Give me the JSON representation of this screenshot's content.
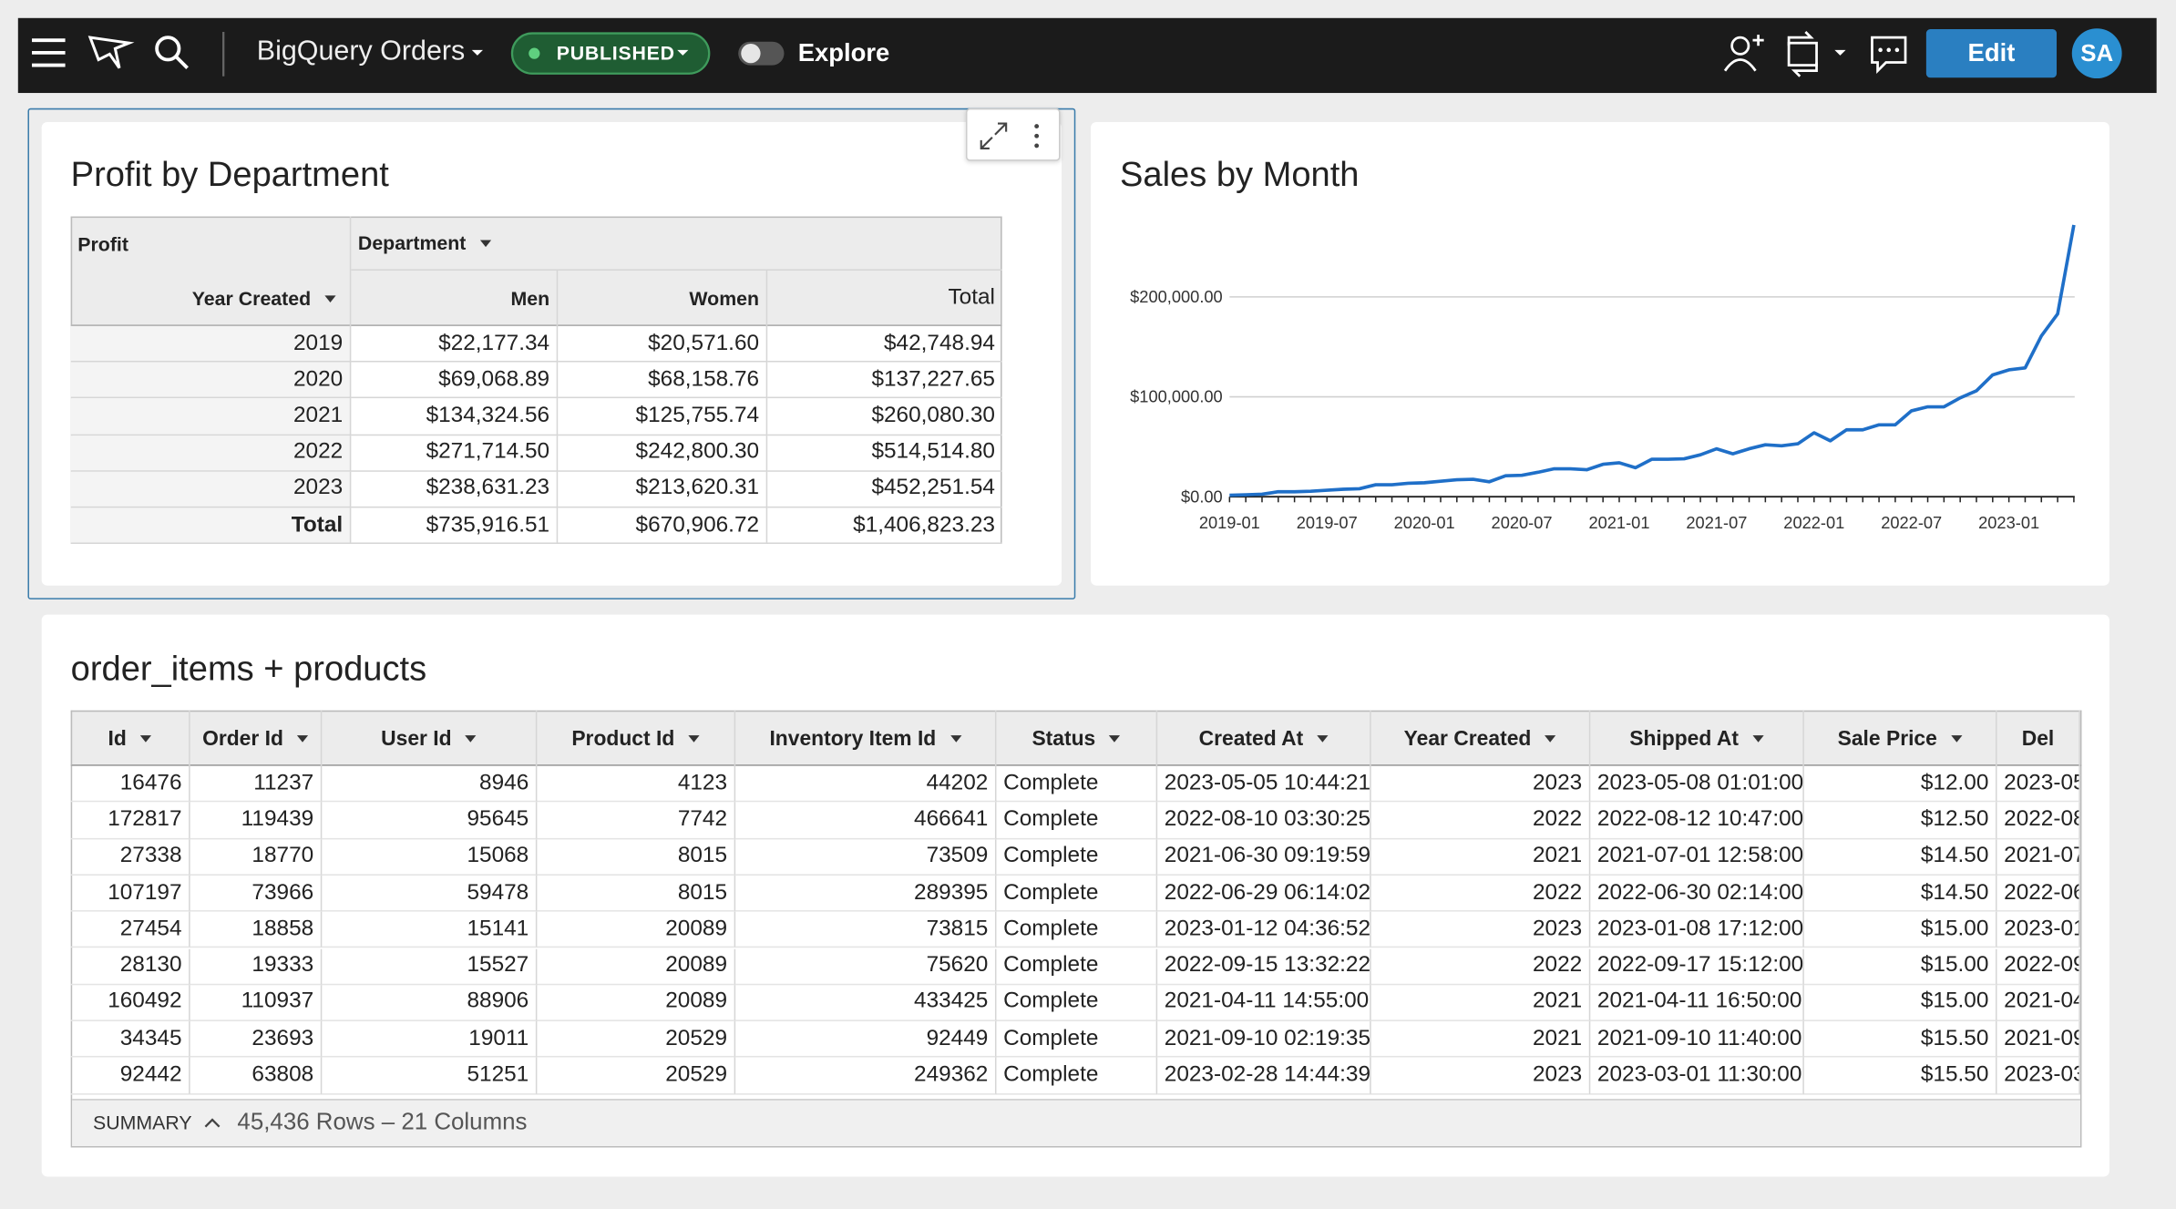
{
  "header": {
    "title": "BigQuery Orders",
    "status": "PUBLISHED",
    "explore": "Explore",
    "edit": "Edit",
    "avatar": "SA"
  },
  "pivot": {
    "title": "Profit by Department",
    "row_header": "Profit",
    "column_header": "Department",
    "row_field": "Year Created",
    "columns": [
      "Men",
      "Women",
      "Total"
    ],
    "rows": [
      [
        "2019",
        "$22,177.34",
        "$20,571.60",
        "$42,748.94"
      ],
      [
        "2020",
        "$69,068.89",
        "$68,158.76",
        "$137,227.65"
      ],
      [
        "2021",
        "$134,324.56",
        "$125,755.74",
        "$260,080.30"
      ],
      [
        "2022",
        "$271,714.50",
        "$242,800.30",
        "$514,514.80"
      ],
      [
        "2023",
        "$238,631.23",
        "$213,620.31",
        "$452,251.54"
      ],
      [
        "Total",
        "$735,916.51",
        "$670,906.72",
        "$1,406,823.23"
      ]
    ]
  },
  "chart_data": {
    "type": "line",
    "title": "Sales by Month",
    "x": [
      "2019-01",
      "2019-02",
      "2019-03",
      "2019-04",
      "2019-05",
      "2019-06",
      "2019-07",
      "2019-08",
      "2019-09",
      "2019-10",
      "2019-11",
      "2019-12",
      "2020-01",
      "2020-02",
      "2020-03",
      "2020-04",
      "2020-05",
      "2020-06",
      "2020-07",
      "2020-08",
      "2020-09",
      "2020-10",
      "2020-11",
      "2020-12",
      "2021-01",
      "2021-02",
      "2021-03",
      "2021-04",
      "2021-05",
      "2021-06",
      "2021-07",
      "2021-08",
      "2021-09",
      "2021-10",
      "2021-11",
      "2021-12",
      "2022-01",
      "2022-02",
      "2022-03",
      "2022-04",
      "2022-05",
      "2022-06",
      "2022-07",
      "2022-08",
      "2022-09",
      "2022-10",
      "2022-11",
      "2022-12",
      "2023-01",
      "2023-02",
      "2023-03",
      "2023-04",
      "2023-05"
    ],
    "series": [
      {
        "name": "Sales",
        "color": "#1f6fc8",
        "values": [
          1500,
          2000,
          2500,
          5000,
          5000,
          5500,
          6500,
          7500,
          8000,
          12000,
          12000,
          13500,
          14000,
          15500,
          17000,
          17500,
          15000,
          21000,
          21500,
          24500,
          28000,
          28000,
          27000,
          32500,
          34000,
          29000,
          37500,
          37500,
          38000,
          42000,
          48000,
          43000,
          48000,
          52000,
          51000,
          53000,
          64000,
          56000,
          67000,
          67000,
          72000,
          72000,
          86000,
          90000,
          90000,
          99000,
          106000,
          122000,
          127000,
          129000,
          161000,
          183000,
          272000
        ]
      }
    ],
    "xticks": [
      "2019-01",
      "2019-07",
      "2020-01",
      "2020-07",
      "2021-01",
      "2021-07",
      "2022-01",
      "2022-07",
      "2023-01"
    ],
    "ylim": [
      0,
      275000
    ],
    "yticks": [
      {
        "value": 0,
        "label": "$0.00"
      },
      {
        "value": 100000,
        "label": "$100,000.00"
      },
      {
        "value": 200000,
        "label": "$200,000.00"
      }
    ],
    "grid": true
  },
  "table": {
    "title": "order_items + products",
    "columns": [
      "Id",
      "Order Id",
      "User Id",
      "Product Id",
      "Inventory Item Id",
      "Status",
      "Created At",
      "Year Created",
      "Shipped At",
      "Sale Price",
      "Del"
    ],
    "rows": [
      [
        "16476",
        "11237",
        "8946",
        "4123",
        "44202",
        "Complete",
        "2023-05-05 10:44:21",
        "2023",
        "2023-05-08 01:01:00",
        "$12.00",
        "2023-05"
      ],
      [
        "172817",
        "119439",
        "95645",
        "7742",
        "466641",
        "Complete",
        "2022-08-10 03:30:25",
        "2022",
        "2022-08-12 10:47:00",
        "$12.50",
        "2022-08"
      ],
      [
        "27338",
        "18770",
        "15068",
        "8015",
        "73509",
        "Complete",
        "2021-06-30 09:19:59",
        "2021",
        "2021-07-01 12:58:00",
        "$14.50",
        "2021-07"
      ],
      [
        "107197",
        "73966",
        "59478",
        "8015",
        "289395",
        "Complete",
        "2022-06-29 06:14:02",
        "2022",
        "2022-06-30 02:14:00",
        "$14.50",
        "2022-06"
      ],
      [
        "27454",
        "18858",
        "15141",
        "20089",
        "73815",
        "Complete",
        "2023-01-12 04:36:52",
        "2023",
        "2023-01-08 17:12:00",
        "$15.00",
        "2023-01"
      ],
      [
        "28130",
        "19333",
        "15527",
        "20089",
        "75620",
        "Complete",
        "2022-09-15 13:32:22",
        "2022",
        "2022-09-17 15:12:00",
        "$15.00",
        "2022-09"
      ],
      [
        "160492",
        "110937",
        "88906",
        "20089",
        "433425",
        "Complete",
        "2021-04-11 14:55:00",
        "2021",
        "2021-04-11 16:50:00",
        "$15.00",
        "2021-04"
      ],
      [
        "34345",
        "23693",
        "19011",
        "20529",
        "92449",
        "Complete",
        "2021-09-10 02:19:35",
        "2021",
        "2021-09-10 11:40:00",
        "$15.50",
        "2021-09"
      ],
      [
        "92442",
        "63808",
        "51251",
        "20529",
        "249362",
        "Complete",
        "2023-02-28 14:44:39",
        "2023",
        "2023-03-01 11:30:00",
        "$15.50",
        "2023-03"
      ]
    ],
    "summary_label": "SUMMARY",
    "summary": "45,436 Rows – 21 Columns"
  }
}
